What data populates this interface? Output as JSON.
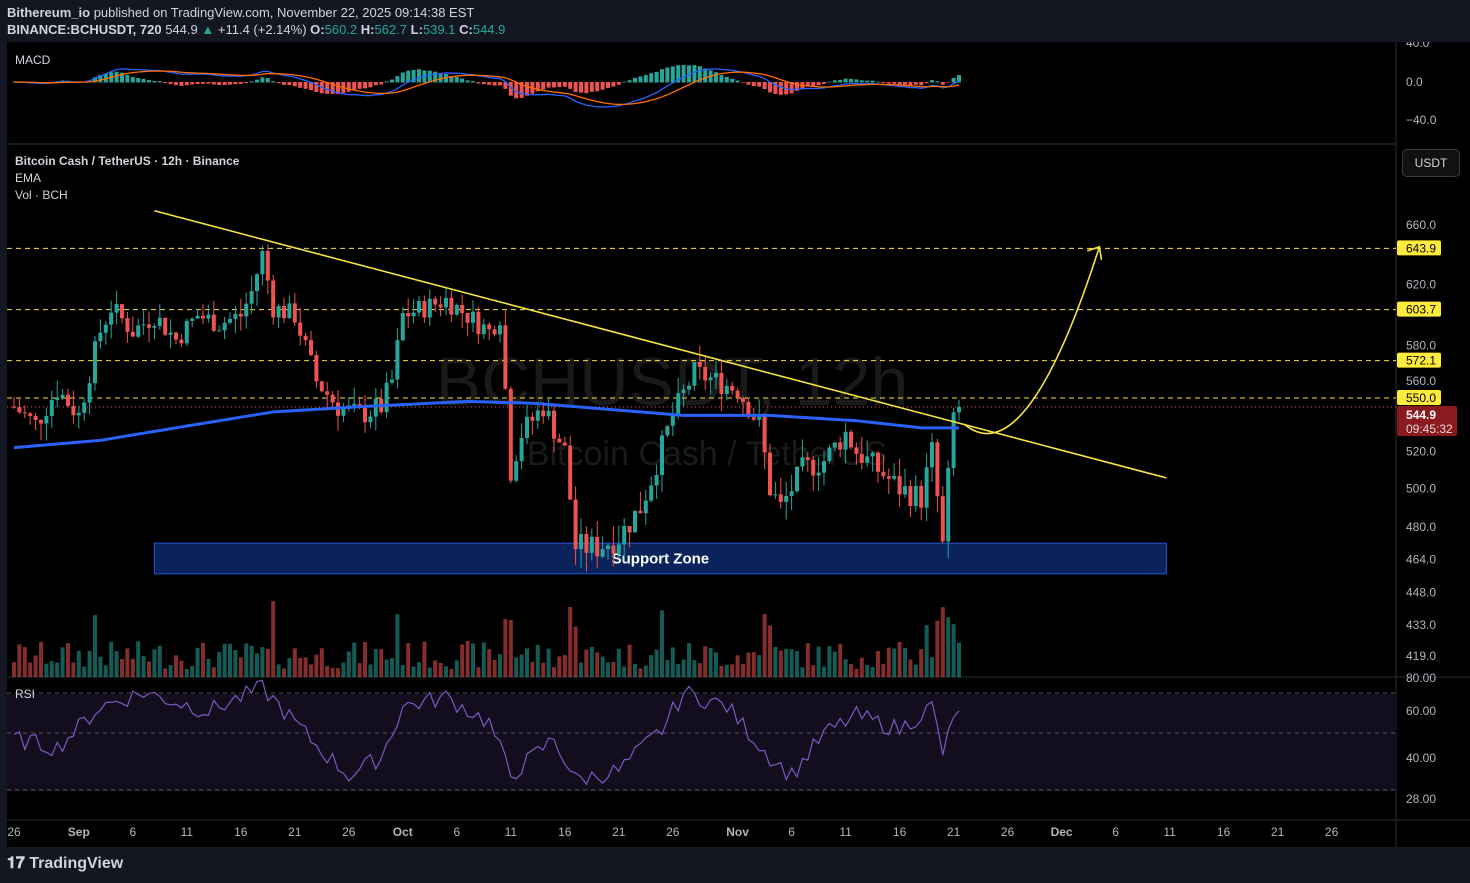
{
  "header": {
    "publisher": "Bithereum_io",
    "published_text": "published on TradingView.com, November 22, 2025 09:14:38 EST",
    "symbol": "BINANCE:BCHUSDT, 720",
    "last": "544.9",
    "change": "+11.4 (+2.14%)",
    "o": "560.2",
    "h": "562.7",
    "l": "539.1",
    "c": "544.9"
  },
  "panels": {
    "macd": "MACD",
    "title": "Bitcoin Cash / TetherUS · 12h · Binance",
    "ema": "EMA",
    "vol": "Vol · BCH",
    "rsi": "RSI",
    "currency": "USDT",
    "watermark1": "BCHUSDT, 12h",
    "watermark2": "Bitcoin Cash / TetherUS"
  },
  "footer": {
    "logo": "TradingView"
  },
  "colors": {
    "up": "#26a69a",
    "down": "#ef5350",
    "ema": "#2962ff",
    "trend": "#f5e342",
    "rsi": "#7e57c2"
  },
  "chart_data": {
    "type": "candlestick",
    "price_ticks": [
      660,
      620,
      580,
      560,
      520,
      500,
      480,
      464,
      448,
      433,
      419
    ],
    "macd_ticks": [
      "40.0",
      "0.0",
      "−40.0"
    ],
    "rsi_ticks": [
      "80.00",
      "60.00",
      "40.00",
      "28.00"
    ],
    "x_ticks": [
      [
        "26",
        0
      ],
      [
        "Sep",
        6
      ],
      [
        "6",
        11
      ],
      [
        "11",
        16
      ],
      [
        "16",
        21
      ],
      [
        "21",
        26
      ],
      [
        "26",
        31
      ],
      [
        "Oct",
        36
      ],
      [
        "6",
        41
      ],
      [
        "11",
        46
      ],
      [
        "16",
        51
      ],
      [
        "21",
        56
      ],
      [
        "26",
        61
      ],
      [
        "Nov",
        67
      ],
      [
        "6",
        72
      ],
      [
        "11",
        77
      ],
      [
        "16",
        82
      ],
      [
        "21",
        87
      ],
      [
        "26",
        92
      ],
      [
        "Dec",
        97
      ],
      [
        "6",
        102
      ],
      [
        "11",
        107
      ],
      [
        "16",
        112
      ],
      [
        "21",
        117
      ],
      [
        "26",
        122
      ]
    ],
    "levels": [
      643.9,
      603.7,
      572.1,
      550.0
    ],
    "last_price": "544.9",
    "countdown": "09:45:32",
    "close_waypoints_day_price": [
      [
        0,
        545
      ],
      [
        2,
        535
      ],
      [
        4,
        555
      ],
      [
        6,
        540
      ],
      [
        8,
        590
      ],
      [
        9,
        605
      ],
      [
        11,
        590
      ],
      [
        13,
        600
      ],
      [
        15,
        585
      ],
      [
        17,
        600
      ],
      [
        19,
        595
      ],
      [
        21,
        600
      ],
      [
        22,
        615
      ],
      [
        23,
        640
      ],
      [
        24,
        605
      ],
      [
        26,
        600
      ],
      [
        28,
        560
      ],
      [
        30,
        545
      ],
      [
        32,
        540
      ],
      [
        34,
        545
      ],
      [
        35,
        560
      ],
      [
        36,
        600
      ],
      [
        38,
        605
      ],
      [
        40,
        610
      ],
      [
        42,
        600
      ],
      [
        44,
        590
      ],
      [
        45,
        600
      ],
      [
        46,
        510
      ],
      [
        47,
        530
      ],
      [
        49,
        545
      ],
      [
        51,
        520
      ],
      [
        52,
        470
      ],
      [
        54,
        470
      ],
      [
        56,
        475
      ],
      [
        58,
        490
      ],
      [
        59,
        505
      ],
      [
        61,
        540
      ],
      [
        63,
        565
      ],
      [
        65,
        560
      ],
      [
        67,
        555
      ],
      [
        69,
        535
      ],
      [
        70,
        500
      ],
      [
        71,
        490
      ],
      [
        73,
        510
      ],
      [
        75,
        515
      ],
      [
        77,
        530
      ],
      [
        78,
        520
      ],
      [
        80,
        510
      ],
      [
        82,
        500
      ],
      [
        84,
        495
      ],
      [
        85,
        520
      ],
      [
        86,
        470
      ],
      [
        87,
        540
      ],
      [
        87.5,
        545
      ]
    ],
    "ema_waypoints_day_price": [
      [
        0,
        522
      ],
      [
        8,
        526
      ],
      [
        16,
        534
      ],
      [
        24,
        542
      ],
      [
        32,
        545
      ],
      [
        42,
        548
      ],
      [
        48,
        547
      ],
      [
        56,
        543
      ],
      [
        62,
        540
      ],
      [
        70,
        540
      ],
      [
        78,
        537
      ],
      [
        84,
        533
      ],
      [
        87.5,
        533
      ]
    ],
    "rsi_waypoints_day_value": [
      [
        0,
        48
      ],
      [
        4,
        44
      ],
      [
        8,
        62
      ],
      [
        12,
        68
      ],
      [
        18,
        60
      ],
      [
        23,
        70
      ],
      [
        28,
        45
      ],
      [
        31,
        32
      ],
      [
        34,
        40
      ],
      [
        36,
        62
      ],
      [
        40,
        66
      ],
      [
        44,
        55
      ],
      [
        46,
        32
      ],
      [
        50,
        48
      ],
      [
        52,
        30
      ],
      [
        56,
        34
      ],
      [
        60,
        52
      ],
      [
        62,
        68
      ],
      [
        66,
        62
      ],
      [
        70,
        40
      ],
      [
        72,
        32
      ],
      [
        75,
        50
      ],
      [
        78,
        58
      ],
      [
        82,
        52
      ],
      [
        85,
        62
      ],
      [
        86,
        42
      ],
      [
        87.5,
        62
      ]
    ],
    "trendline": {
      "from": [
        13,
        670
      ],
      "to": [
        106.7,
        505.6
      ]
    },
    "support_zone": {
      "low": 457,
      "high": 472,
      "label": "Support Zone",
      "from_day": 13,
      "to_day": 106.7
    },
    "projection_arrow": {
      "from": [
        88,
        535
      ],
      "to": [
        100.5,
        645
      ]
    }
  }
}
